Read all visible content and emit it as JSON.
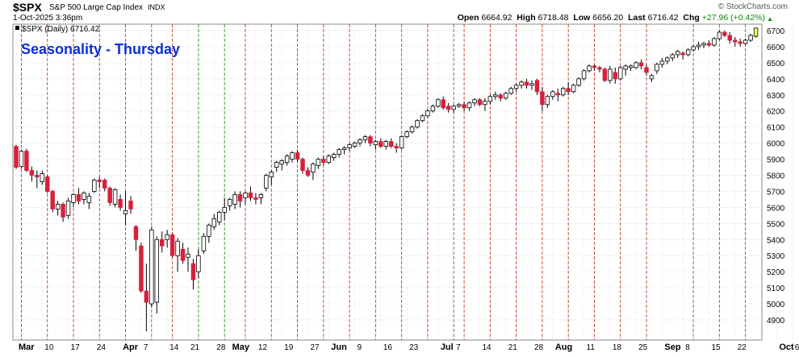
{
  "header": {
    "symbol": "$SPX",
    "name": "S&P 500 Large Cap Index",
    "exchange": "INDX",
    "brand": "© StockCharts.com",
    "datetime": "1-Oct-2025 3:36pm",
    "open_label": "Open",
    "open": "6664.92",
    "high_label": "High",
    "high": "6718.48",
    "low_label": "Low",
    "low": "6656.20",
    "last_label": "Last",
    "last": "6716.42",
    "chg_label": "Chg",
    "chg": "+27.96 (+0.42%)",
    "legend": "$SPX (Daily) 6716.42"
  },
  "colors": {
    "up": "#ffffff",
    "down": "#d81f3c",
    "last_bar": "#ffff66",
    "title": "#0b2fd6",
    "red_line": "#c0392b",
    "green_line": "#2e8b22"
  },
  "chart_data": {
    "type": "candlestick",
    "title": "Seasonality - Thursday",
    "ylim": [
      4780,
      6760
    ],
    "yticks": [
      4900,
      5000,
      5100,
      5200,
      5300,
      5400,
      5500,
      5600,
      5700,
      5800,
      5900,
      6000,
      6100,
      6200,
      6300,
      6400,
      6500,
      6600,
      6700
    ],
    "xticks": [
      {
        "label": "Mar",
        "index": 0,
        "month": true
      },
      {
        "label": "10",
        "index": 5
      },
      {
        "label": "17",
        "index": 10
      },
      {
        "label": "24",
        "index": 15
      },
      {
        "label": "Apr",
        "index": 20,
        "month": true
      },
      {
        "label": "7",
        "index": 24
      },
      {
        "label": "14",
        "index": 29
      },
      {
        "label": "21",
        "index": 33
      },
      {
        "label": "28",
        "index": 38
      },
      {
        "label": "May",
        "index": 41,
        "month": true
      },
      {
        "label": "12",
        "index": 46
      },
      {
        "label": "19",
        "index": 51
      },
      {
        "label": "27",
        "index": 56
      },
      {
        "label": "Jun",
        "index": 60,
        "month": true
      },
      {
        "label": "9",
        "index": 65
      },
      {
        "label": "16",
        "index": 70
      },
      {
        "label": "23",
        "index": 75
      },
      {
        "label": "Jul",
        "index": 81,
        "month": true
      },
      {
        "label": "7",
        "index": 84
      },
      {
        "label": "14",
        "index": 89
      },
      {
        "label": "21",
        "index": 94
      },
      {
        "label": "28",
        "index": 99
      },
      {
        "label": "Aug",
        "index": 103,
        "month": true
      },
      {
        "label": "11",
        "index": 109
      },
      {
        "label": "18",
        "index": 114
      },
      {
        "label": "25",
        "index": 119
      },
      {
        "label": "Sep",
        "index": 124,
        "month": true
      },
      {
        "label": "8",
        "index": 128
      },
      {
        "label": "15",
        "index": 133
      },
      {
        "label": "22",
        "index": 138
      },
      {
        "label": "Oct",
        "index": 146,
        "month": true
      },
      {
        "label": "6",
        "index": 149
      }
    ],
    "thursday_red": [
      1,
      6,
      11,
      16,
      21,
      30,
      44,
      49,
      54,
      59,
      64,
      69,
      79,
      86,
      91,
      96,
      101,
      106,
      111,
      116,
      121,
      140
    ],
    "thursday_green": [
      26,
      35,
      40,
      74,
      84,
      130,
      135
    ],
    "ohlc": [
      [
        5980,
        5990,
        5840,
        5850
      ],
      [
        5855,
        5960,
        5840,
        5950
      ],
      [
        5950,
        5965,
        5820,
        5830
      ],
      [
        5830,
        5855,
        5760,
        5800
      ],
      [
        5800,
        5830,
        5720,
        5790
      ],
      [
        5760,
        5830,
        5740,
        5810
      ],
      [
        5790,
        5800,
        5690,
        5700
      ],
      [
        5700,
        5710,
        5570,
        5590
      ],
      [
        5590,
        5640,
        5550,
        5620
      ],
      [
        5620,
        5630,
        5510,
        5540
      ],
      [
        5550,
        5660,
        5530,
        5640
      ],
      [
        5630,
        5690,
        5600,
        5680
      ],
      [
        5680,
        5720,
        5620,
        5640
      ],
      [
        5650,
        5700,
        5620,
        5690
      ],
      [
        5630,
        5690,
        5590,
        5670
      ],
      [
        5700,
        5780,
        5690,
        5770
      ],
      [
        5770,
        5790,
        5720,
        5760
      ],
      [
        5770,
        5780,
        5700,
        5720
      ],
      [
        5720,
        5730,
        5610,
        5630
      ],
      [
        5620,
        5720,
        5600,
        5710
      ],
      [
        5650,
        5680,
        5580,
        5600
      ],
      [
        5560,
        5700,
        5490,
        5580
      ],
      [
        5640,
        5670,
        5560,
        5590
      ],
      [
        5480,
        5490,
        5330,
        5400
      ],
      [
        5360,
        5380,
        5070,
        5080
      ],
      [
        5080,
        5250,
        4830,
        5010
      ],
      [
        5000,
        5480,
        4980,
        5460
      ],
      [
        5010,
        5420,
        4940,
        5400
      ],
      [
        5400,
        5450,
        5320,
        5360
      ],
      [
        5400,
        5460,
        5350,
        5430
      ],
      [
        5430,
        5440,
        5290,
        5300
      ],
      [
        5300,
        5410,
        5200,
        5390
      ],
      [
        5340,
        5380,
        5250,
        5270
      ],
      [
        5290,
        5350,
        5200,
        5310
      ],
      [
        5250,
        5280,
        5090,
        5150
      ],
      [
        5200,
        5340,
        5160,
        5300
      ],
      [
        5330,
        5440,
        5310,
        5420
      ],
      [
        5420,
        5500,
        5380,
        5490
      ],
      [
        5480,
        5560,
        5460,
        5530
      ],
      [
        5510,
        5580,
        5490,
        5570
      ],
      [
        5570,
        5660,
        5520,
        5600
      ],
      [
        5610,
        5660,
        5580,
        5650
      ],
      [
        5620,
        5700,
        5590,
        5680
      ],
      [
        5680,
        5700,
        5600,
        5640
      ],
      [
        5660,
        5700,
        5620,
        5690
      ],
      [
        5690,
        5730,
        5640,
        5660
      ],
      [
        5660,
        5690,
        5620,
        5650
      ],
      [
        5660,
        5690,
        5620,
        5680
      ],
      [
        5720,
        5810,
        5700,
        5800
      ],
      [
        5790,
        5830,
        5740,
        5820
      ],
      [
        5850,
        5890,
        5820,
        5880
      ],
      [
        5870,
        5900,
        5830,
        5890
      ],
      [
        5880,
        5930,
        5860,
        5920
      ],
      [
        5900,
        5950,
        5880,
        5940
      ],
      [
        5940,
        5960,
        5880,
        5900
      ],
      [
        5900,
        5910,
        5810,
        5830
      ],
      [
        5830,
        5850,
        5790,
        5800
      ],
      [
        5820,
        5880,
        5770,
        5870
      ],
      [
        5860,
        5910,
        5840,
        5900
      ],
      [
        5900,
        5920,
        5860,
        5880
      ],
      [
        5880,
        5930,
        5870,
        5920
      ],
      [
        5910,
        5940,
        5890,
        5930
      ],
      [
        5930,
        5970,
        5910,
        5960
      ],
      [
        5960,
        5980,
        5930,
        5970
      ],
      [
        5970,
        6000,
        5950,
        5990
      ],
      [
        5980,
        6010,
        5970,
        6000
      ],
      [
        6000,
        6030,
        5980,
        6020
      ],
      [
        6020,
        6050,
        6000,
        6040
      ],
      [
        6040,
        6050,
        5980,
        6000
      ],
      [
        5990,
        6020,
        5960,
        6010
      ],
      [
        6010,
        6030,
        5970,
        5980
      ],
      [
        5980,
        6020,
        5960,
        6010
      ],
      [
        6010,
        6030,
        5970,
        5980
      ],
      [
        5980,
        6000,
        5940,
        5970
      ],
      [
        5970,
        6050,
        5960,
        6040
      ],
      [
        6040,
        6080,
        6030,
        6070
      ],
      [
        6070,
        6110,
        6060,
        6100
      ],
      [
        6100,
        6150,
        6090,
        6140
      ],
      [
        6140,
        6180,
        6130,
        6170
      ],
      [
        6170,
        6210,
        6160,
        6200
      ],
      [
        6200,
        6240,
        6190,
        6230
      ],
      [
        6230,
        6280,
        6220,
        6270
      ],
      [
        6270,
        6290,
        6210,
        6220
      ],
      [
        6230,
        6250,
        6190,
        6210
      ],
      [
        6210,
        6240,
        6190,
        6230
      ],
      [
        6230,
        6250,
        6220,
        6240
      ],
      [
        6240,
        6260,
        6200,
        6220
      ],
      [
        6220,
        6260,
        6200,
        6250
      ],
      [
        6250,
        6280,
        6230,
        6270
      ],
      [
        6270,
        6280,
        6230,
        6240
      ],
      [
        6240,
        6280,
        6200,
        6260
      ],
      [
        6260,
        6300,
        6240,
        6290
      ],
      [
        6290,
        6320,
        6270,
        6300
      ],
      [
        6300,
        6310,
        6260,
        6280
      ],
      [
        6280,
        6320,
        6270,
        6310
      ],
      [
        6310,
        6350,
        6300,
        6340
      ],
      [
        6340,
        6370,
        6320,
        6360
      ],
      [
        6360,
        6390,
        6340,
        6380
      ],
      [
        6380,
        6400,
        6340,
        6360
      ],
      [
        6360,
        6390,
        6330,
        6370
      ],
      [
        6390,
        6400,
        6300,
        6320
      ],
      [
        6320,
        6350,
        6200,
        6240
      ],
      [
        6240,
        6300,
        6220,
        6290
      ],
      [
        6290,
        6330,
        6270,
        6320
      ],
      [
        6310,
        6340,
        6260,
        6300
      ],
      [
        6300,
        6350,
        6290,
        6340
      ],
      [
        6340,
        6380,
        6300,
        6320
      ],
      [
        6320,
        6370,
        6310,
        6360
      ],
      [
        6360,
        6410,
        6350,
        6400
      ],
      [
        6400,
        6460,
        6390,
        6450
      ],
      [
        6450,
        6490,
        6440,
        6480
      ],
      [
        6480,
        6490,
        6450,
        6470
      ],
      [
        6470,
        6480,
        6440,
        6460
      ],
      [
        6460,
        6470,
        6380,
        6390
      ],
      [
        6390,
        6480,
        6370,
        6460
      ],
      [
        6440,
        6470,
        6370,
        6400
      ],
      [
        6400,
        6480,
        6390,
        6470
      ],
      [
        6460,
        6490,
        6420,
        6480
      ],
      [
        6470,
        6490,
        6450,
        6480
      ],
      [
        6470,
        6510,
        6460,
        6500
      ],
      [
        6500,
        6520,
        6460,
        6480
      ],
      [
        6470,
        6490,
        6420,
        6440
      ],
      [
        6400,
        6430,
        6380,
        6420
      ],
      [
        6450,
        6500,
        6430,
        6490
      ],
      [
        6490,
        6530,
        6470,
        6510
      ],
      [
        6510,
        6540,
        6490,
        6530
      ],
      [
        6530,
        6560,
        6510,
        6550
      ],
      [
        6550,
        6580,
        6530,
        6570
      ],
      [
        6560,
        6570,
        6520,
        6550
      ],
      [
        6550,
        6590,
        6540,
        6580
      ],
      [
        6580,
        6610,
        6570,
        6600
      ],
      [
        6600,
        6630,
        6580,
        6610
      ],
      [
        6610,
        6630,
        6590,
        6620
      ],
      [
        6620,
        6640,
        6600,
        6610
      ],
      [
        6610,
        6660,
        6600,
        6650
      ],
      [
        6650,
        6700,
        6640,
        6690
      ],
      [
        6690,
        6700,
        6660,
        6670
      ],
      [
        6670,
        6690,
        6620,
        6640
      ],
      [
        6640,
        6660,
        6600,
        6630
      ],
      [
        6630,
        6650,
        6600,
        6620
      ],
      [
        6620,
        6650,
        6610,
        6640
      ],
      [
        6640,
        6680,
        6630,
        6670
      ],
      [
        6665,
        6718,
        6656,
        6716
      ]
    ]
  }
}
